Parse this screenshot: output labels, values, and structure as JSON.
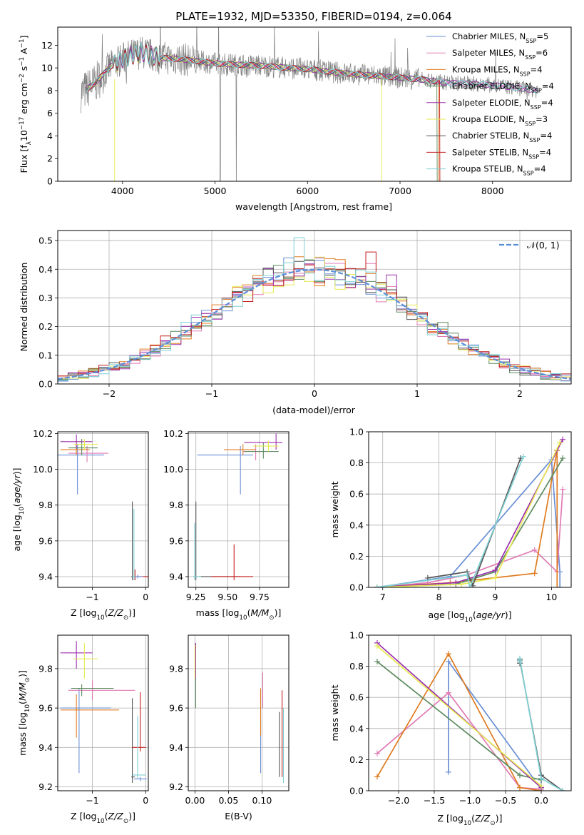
{
  "figure": {
    "title": "PLATE=1932, MJD=53350, FIBERID=0194, z=0.064"
  },
  "series_styles": [
    {
      "name": "Chabrier MILES",
      "color": "#6a8fd6"
    },
    {
      "name": "Salpeter MILES",
      "color": "#e07bb4"
    },
    {
      "name": "Kroupa MILES",
      "color": "#e07b1f"
    },
    {
      "name": "Chabrier ELODIE",
      "color": "#5b8a5e"
    },
    {
      "name": "Salpeter ELODIE",
      "color": "#9b2fae"
    },
    {
      "name": "Kroupa ELODIE",
      "color": "#e6ea52"
    },
    {
      "name": "Chabrier STELIB",
      "color": "#555555"
    },
    {
      "name": "Salpeter STELIB",
      "color": "#c41e1e"
    },
    {
      "name": "Kroupa STELIB",
      "color": "#7fd0d4"
    }
  ],
  "chart_data": [
    {
      "id": "spectrum",
      "type": "line",
      "title": "PLATE=1932, MJD=53350, FIBERID=0194, z=0.064",
      "xlabel": "wavelength [Angstrom, rest frame]",
      "ylabel": "Flux [fλ10⁻¹⁷ erg cm⁻² s⁻¹ A⁻¹]",
      "xlim": [
        3300,
        8850
      ],
      "ylim": [
        0,
        13.6
      ],
      "xticks": [
        4000,
        5000,
        6000,
        7000,
        8000
      ],
      "yticks": [
        0,
        2,
        4,
        6,
        8,
        10,
        12
      ],
      "grid": false,
      "legend": "top-right",
      "legend_entries": [
        "Chabrier MILES, N_SSP=5",
        "Salpeter MILES, N_SSP=6",
        "Kroupa MILES, N_SSP=4",
        "Chabrier ELODIE, N_SSP=4",
        "Salpeter ELODIE, N_SSP=4",
        "Kroupa ELODIE, N_SSP=3",
        "Chabrier STELIB, N_SSP=4",
        "Salpeter STELIB, N_SSP=4",
        "Kroupa STELIB, N_SSP=4"
      ],
      "data_profile": {
        "x": [
          3550,
          3700,
          3850,
          4000,
          4200,
          4400,
          4600,
          4800,
          5000,
          5200,
          5500,
          5800,
          6000,
          6300,
          6600,
          6900,
          7200,
          7500,
          7800,
          8100,
          8400,
          8500
        ],
        "y": [
          7.8,
          8.6,
          10.0,
          10.8,
          11.4,
          10.9,
          10.8,
          10.6,
          10.4,
          10.3,
          10.2,
          10.0,
          9.9,
          9.6,
          9.4,
          9.2,
          9.0,
          8.7,
          8.6,
          8.4,
          8.1,
          8.0
        ]
      }
    },
    {
      "id": "residuals",
      "type": "bar",
      "xlabel": "(data-model)/error",
      "ylabel": "Normed distribution",
      "xlim": [
        -2.5,
        2.5
      ],
      "ylim": [
        0,
        0.535
      ],
      "xticks": [
        -2,
        -1,
        0,
        1,
        2
      ],
      "yticks": [
        0.0,
        0.1,
        0.2,
        0.3,
        0.4,
        0.5
      ],
      "grid": true,
      "legend": "top-right",
      "legend_entries": [
        "𝒩(0, 1)"
      ],
      "bin_width": 0.1,
      "bin_start": -2.5,
      "reference_curve": {
        "name": "𝒩(0, 1)",
        "mu": 0,
        "sigma": 1,
        "color": "#5c8ed8"
      },
      "spikes": [
        [
          8,
          23,
          0.51
        ],
        [
          7,
          30,
          0.46
        ],
        [
          0,
          22,
          0.44
        ],
        [
          1,
          30,
          0.42
        ],
        [
          5,
          27,
          0.33
        ],
        [
          4,
          32,
          0.38
        ]
      ]
    },
    {
      "id": "age_vs_Z",
      "type": "errorbar",
      "xlabel": "Z [log₁₀(Z/Z⊙)]",
      "ylabel": "age  [log₁₀(age/yr)]",
      "xlim": [
        -1.65,
        0.05
      ],
      "ylim": [
        9.34,
        10.21
      ],
      "xticks": [
        -1,
        0
      ],
      "yticks": [
        9.4,
        9.6,
        9.8,
        10.0,
        10.2
      ],
      "grid": true,
      "points": [
        {
          "series": 0,
          "x": -1.28,
          "y": 10.08,
          "xerr": [
            0.75,
            0.5
          ],
          "yerr": [
            0.22,
            0.06
          ]
        },
        {
          "series": 1,
          "x": -1.1,
          "y": 10.09,
          "xerr": [
            0.35,
            0.4
          ],
          "yerr": [
            0.05,
            0.04
          ]
        },
        {
          "series": 2,
          "x": -1.3,
          "y": 10.11,
          "xerr": [
            0.3,
            0.25
          ],
          "yerr": [
            0.03,
            0.03
          ]
        },
        {
          "series": 3,
          "x": -1.2,
          "y": 10.12,
          "xerr": [
            0.25,
            0.3
          ],
          "yerr": [
            0.04,
            0.05
          ]
        },
        {
          "series": 4,
          "x": -1.3,
          "y": 10.155,
          "xerr": [
            0.3,
            0.3
          ],
          "yerr": [
            0.04,
            0.04
          ]
        },
        {
          "series": 5,
          "x": -1.15,
          "y": 10.14,
          "xerr": [
            0.2,
            0.25
          ],
          "yerr": [
            0.03,
            0.03
          ]
        },
        {
          "series": 6,
          "x": -0.25,
          "y": 9.4,
          "xerr": [
            0.02,
            0.02
          ],
          "yerr": [
            0.02,
            0.42
          ]
        },
        {
          "series": 7,
          "x": -0.2,
          "y": 9.4,
          "xerr": [
            0.05,
            0.25
          ],
          "yerr": [
            0.02,
            0.04
          ]
        },
        {
          "series": 8,
          "x": -0.22,
          "y": 9.4,
          "xerr": [
            0.03,
            0.03
          ],
          "yerr": [
            0.02,
            0.38
          ]
        },
        {
          "series": 0,
          "x": -0.15,
          "y": 9.4,
          "xerr": [
            0.05,
            0.1
          ],
          "yerr": [
            0.01,
            0.01
          ]
        }
      ]
    },
    {
      "id": "age_vs_mass",
      "type": "errorbar",
      "xlabel": "mass [log₁₀(M/M⊙)]",
      "ylabel": "",
      "xlim": [
        9.19,
        9.98
      ],
      "ylim": [
        9.34,
        10.21
      ],
      "xticks": [
        9.25,
        9.5,
        9.75
      ],
      "yticks": [
        9.4,
        9.6,
        9.8,
        10.0,
        10.2
      ],
      "grid": true,
      "points": [
        {
          "series": 0,
          "x": 9.6,
          "y": 10.08,
          "xerr": [
            0.34,
            0.1
          ],
          "yerr": [
            0.22,
            0.05
          ]
        },
        {
          "series": 1,
          "x": 9.72,
          "y": 10.1,
          "xerr": [
            0.1,
            0.05
          ],
          "yerr": [
            0.05,
            0.04
          ]
        },
        {
          "series": 2,
          "x": 9.62,
          "y": 10.11,
          "xerr": [
            0.15,
            0.1
          ],
          "yerr": [
            0.03,
            0.03
          ]
        },
        {
          "series": 3,
          "x": 9.78,
          "y": 10.1,
          "xerr": [
            0.15,
            0.12
          ],
          "yerr": [
            0.04,
            0.05
          ]
        },
        {
          "series": 4,
          "x": 9.88,
          "y": 10.15,
          "xerr": [
            0.25,
            0.05
          ],
          "yerr": [
            0.04,
            0.05
          ]
        },
        {
          "series": 5,
          "x": 9.82,
          "y": 10.13,
          "xerr": [
            0.12,
            0.08
          ],
          "yerr": [
            0.03,
            0.03
          ]
        },
        {
          "series": 6,
          "x": 9.25,
          "y": 9.4,
          "xerr": [
            0.02,
            0.35
          ],
          "yerr": [
            0.02,
            0.42
          ]
        },
        {
          "series": 7,
          "x": 9.55,
          "y": 9.4,
          "xerr": [
            0.18,
            0.15
          ],
          "yerr": [
            0.02,
            0.18
          ]
        },
        {
          "series": 8,
          "x": 9.24,
          "y": 9.4,
          "xerr": [
            0.01,
            0.05
          ],
          "yerr": [
            0.02,
            0.3
          ]
        }
      ]
    },
    {
      "id": "mass_weight_vs_age",
      "type": "line",
      "xlabel": "age  [log₁₀(age/yr)]",
      "ylabel": "mass weight",
      "xlim": [
        6.75,
        10.35
      ],
      "ylim": [
        0,
        1.0
      ],
      "xticks": [
        7,
        8,
        9,
        10
      ],
      "yticks": [
        0.0,
        0.2,
        0.4,
        0.6,
        0.8,
        1.0
      ],
      "grid": true,
      "series": [
        {
          "series": 0,
          "x": [
            6.9,
            8.2,
            10.0,
            10.15,
            10.15
          ],
          "y": [
            0.0,
            0.07,
            0.82,
            0.1,
            0.0
          ]
        },
        {
          "series": 1,
          "x": [
            6.9,
            7.8,
            8.5,
            9.7,
            10.1,
            10.2
          ],
          "y": [
            0.0,
            0.03,
            0.08,
            0.24,
            0.1,
            0.63
          ]
        },
        {
          "series": 2,
          "x": [
            6.9,
            8.2,
            9.7,
            10.1,
            10.1
          ],
          "y": [
            0.0,
            0.03,
            0.09,
            0.88,
            0.0
          ]
        },
        {
          "series": 3,
          "x": [
            6.9,
            8.3,
            9.0,
            10.2
          ],
          "y": [
            0.0,
            0.02,
            0.1,
            0.83
          ]
        },
        {
          "series": 4,
          "x": [
            6.9,
            8.3,
            9.0,
            10.2
          ],
          "y": [
            0.0,
            0.03,
            0.11,
            0.95
          ]
        },
        {
          "series": 5,
          "x": [
            6.9,
            8.4,
            9.0,
            10.15
          ],
          "y": [
            0.0,
            0.02,
            0.06,
            0.93
          ]
        },
        {
          "series": 6,
          "x": [
            7.8,
            8.5,
            8.6,
            9.45
          ],
          "y": [
            0.06,
            0.1,
            0.01,
            0.83
          ]
        },
        {
          "series": 8,
          "x": [
            6.9,
            8.5,
            8.55,
            9.5
          ],
          "y": [
            0.0,
            0.08,
            0.0,
            0.84
          ]
        }
      ]
    },
    {
      "id": "mass_vs_Z",
      "type": "errorbar",
      "xlabel": "Z [log₁₀(Z/Z⊙)]",
      "ylabel": "mass [log₁₀(M/M⊙)]",
      "xlim": [
        -1.65,
        0.05
      ],
      "ylim": [
        9.18,
        9.97
      ],
      "xticks": [
        -1,
        0
      ],
      "yticks": [
        9.2,
        9.4,
        9.6,
        9.8
      ],
      "grid": true,
      "points": [
        {
          "series": 0,
          "x": -1.25,
          "y": 9.6,
          "xerr": [
            0.35,
            0.6
          ],
          "yerr": [
            0.33,
            0.1
          ]
        },
        {
          "series": 1,
          "x": -1.0,
          "y": 9.69,
          "xerr": [
            0.45,
            0.8
          ],
          "yerr": [
            0.05,
            0.05
          ]
        },
        {
          "series": 2,
          "x": -1.3,
          "y": 9.59,
          "xerr": [
            0.3,
            0.8
          ],
          "yerr": [
            0.14,
            0.08
          ]
        },
        {
          "series": 3,
          "x": -1.2,
          "y": 9.7,
          "xerr": [
            0.2,
            0.6
          ],
          "yerr": [
            0.04,
            0.02
          ]
        },
        {
          "series": 4,
          "x": -1.3,
          "y": 9.88,
          "xerr": [
            0.3,
            0.3
          ],
          "yerr": [
            0.08,
            0.06
          ]
        },
        {
          "series": 5,
          "x": -1.15,
          "y": 9.85,
          "xerr": [
            0.2,
            0.25
          ],
          "yerr": [
            0.1,
            0.08
          ]
        },
        {
          "series": 6,
          "x": -0.25,
          "y": 9.25,
          "xerr": [
            0.02,
            0.05
          ],
          "yerr": [
            0.03,
            0.4
          ]
        },
        {
          "series": 7,
          "x": -0.1,
          "y": 9.4,
          "xerr": [
            0.15,
            0.1
          ],
          "yerr": [
            0.02,
            0.28
          ]
        },
        {
          "series": 8,
          "x": -0.15,
          "y": 9.26,
          "xerr": [
            0.1,
            0.15
          ],
          "yerr": [
            0.02,
            0.3
          ]
        },
        {
          "series": 0,
          "x": -0.1,
          "y": 9.24,
          "xerr": [
            0.12,
            0.12
          ],
          "yerr": [
            0.01,
            0.01
          ]
        }
      ]
    },
    {
      "id": "mass_vs_EBV",
      "type": "errorbar",
      "xlabel": "E(B-V)",
      "ylabel": "",
      "xlim": [
        -0.01,
        0.14
      ],
      "ylim": [
        9.18,
        9.97
      ],
      "xticks": [
        0.0,
        0.05,
        0.1
      ],
      "ytick_values": [
        9.2,
        9.4,
        9.6,
        9.8
      ],
      "grid": true,
      "points": [
        {
          "series": 0,
          "x": 0.098,
          "y": 9.45,
          "yerr": [
            0.18,
            0.1
          ]
        },
        {
          "series": 1,
          "x": 0.101,
          "y": 9.7,
          "yerr": [
            0.1,
            0.08
          ]
        },
        {
          "series": 2,
          "x": 0.098,
          "y": 9.58,
          "yerr": [
            0.12,
            0.12
          ]
        },
        {
          "series": 3,
          "x": 0.001,
          "y": 9.75,
          "yerr": [
            0.15,
            0.18
          ]
        },
        {
          "series": 4,
          "x": 0.001,
          "y": 9.85,
          "yerr": [
            0.1,
            0.08
          ]
        },
        {
          "series": 5,
          "x": 0.0,
          "y": 9.85,
          "yerr": [
            0.1,
            0.07
          ]
        },
        {
          "series": 6,
          "x": 0.126,
          "y": 9.4,
          "yerr": [
            0.15,
            0.18
          ]
        },
        {
          "series": 7,
          "x": 0.13,
          "y": 9.45,
          "yerr": [
            0.2,
            0.24
          ]
        },
        {
          "series": 8,
          "x": 0.132,
          "y": 9.38,
          "yerr": [
            0.16,
            0.22
          ]
        }
      ]
    },
    {
      "id": "mass_weight_vs_Z",
      "type": "line",
      "xlabel": "Z [log₁₀(Z/Z⊙)]",
      "ylabel": "mass weight",
      "xlim": [
        -2.42,
        0.42
      ],
      "ylim": [
        0,
        1.0
      ],
      "xticks": [
        -2.0,
        -1.5,
        -1.0,
        -0.5,
        0.0
      ],
      "yticks": [
        0.0,
        0.2,
        0.4,
        0.6,
        0.8,
        1.0
      ],
      "grid": true,
      "series": [
        {
          "series": 0,
          "x": [
            -1.3,
            -1.3,
            0.0,
            0.0
          ],
          "y": [
            0.12,
            0.83,
            0.01,
            0.1
          ]
        },
        {
          "series": 1,
          "x": [
            -2.3,
            -1.3,
            -0.3,
            0.0
          ],
          "y": [
            0.24,
            0.63,
            0.02,
            0.01
          ]
        },
        {
          "series": 2,
          "x": [
            -2.3,
            -1.3,
            -0.3,
            0.0
          ],
          "y": [
            0.09,
            0.88,
            0.02,
            0.0
          ]
        },
        {
          "series": 3,
          "x": [
            -2.3,
            -0.3,
            0.0
          ],
          "y": [
            0.83,
            0.1,
            0.07
          ]
        },
        {
          "series": 4,
          "x": [
            -2.3,
            0.0
          ],
          "y": [
            0.95,
            0.02
          ]
        },
        {
          "series": 5,
          "x": [
            -2.3,
            0.0
          ],
          "y": [
            0.93,
            0.03
          ]
        },
        {
          "series": 6,
          "x": [
            -0.3,
            -0.3,
            0.0,
            0.3
          ],
          "y": [
            0.82,
            0.84,
            0.1,
            0.0
          ]
        },
        {
          "series": 8,
          "x": [
            -0.3,
            -0.3,
            0.0,
            0.3
          ],
          "y": [
            0.83,
            0.85,
            0.08,
            0.0
          ]
        }
      ]
    }
  ]
}
